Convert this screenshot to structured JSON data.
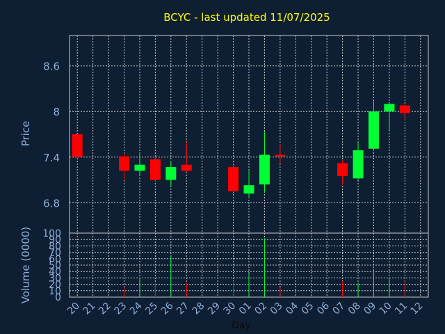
{
  "chart_data": {
    "type": "candlestick",
    "title": "BCYC - last updated 11/07/2025",
    "xlabel": "Day",
    "ylabel": "Price",
    "volume_label": "Volume (0000)",
    "x_ticks": [
      "20",
      "21",
      "22",
      "23",
      "24",
      "25",
      "26",
      "27",
      "28",
      "29",
      "30",
      "01",
      "02",
      "03",
      "04",
      "05",
      "06",
      "07",
      "08",
      "09",
      "10",
      "11",
      "12"
    ],
    "price_ticks": [
      "6.8",
      "7.4",
      "8",
      "8.6"
    ],
    "volume_ticks": [
      "0",
      "10",
      "20",
      "30",
      "40",
      "50",
      "60",
      "70",
      "80",
      "90",
      "100"
    ],
    "ylim": [
      6.4,
      9.0
    ],
    "volume_ylim": [
      0,
      100
    ],
    "grid": true,
    "colors": {
      "background": "#0f1f33",
      "up": "#00ff33",
      "down": "#ff0000",
      "grid": "#c8c8c8",
      "axis_text": "#8fb0d8",
      "title": "#ffff00"
    },
    "candles": [
      {
        "day": "20",
        "open": 7.7,
        "high": 7.7,
        "low": 7.4,
        "close": 7.4,
        "volume": 0
      },
      {
        "day": "23",
        "open": 7.41,
        "high": 7.45,
        "low": 7.1,
        "close": 7.22,
        "volume": 15
      },
      {
        "day": "24",
        "open": 7.22,
        "high": 7.46,
        "low": 7.16,
        "close": 7.3,
        "volume": 30
      },
      {
        "day": "25",
        "open": 7.37,
        "high": 7.4,
        "low": 7.08,
        "close": 7.1,
        "volume": 22
      },
      {
        "day": "26",
        "open": 7.1,
        "high": 7.35,
        "low": 7.02,
        "close": 7.27,
        "volume": 65
      },
      {
        "day": "27",
        "open": 7.3,
        "high": 7.6,
        "low": 7.2,
        "close": 7.22,
        "volume": 22
      },
      {
        "day": "30",
        "open": 7.27,
        "high": 7.3,
        "low": 6.94,
        "close": 6.95,
        "volume": 25
      },
      {
        "day": "01",
        "open": 6.92,
        "high": 7.22,
        "low": 6.86,
        "close": 7.03,
        "volume": 37
      },
      {
        "day": "02",
        "open": 7.04,
        "high": 7.74,
        "low": 6.93,
        "close": 7.43,
        "volume": 92
      },
      {
        "day": "03",
        "open": 7.43,
        "high": 7.57,
        "low": 7.32,
        "close": 7.41,
        "volume": 15
      },
      {
        "day": "07",
        "open": 7.32,
        "high": 7.36,
        "low": 7.04,
        "close": 7.15,
        "volume": 25
      },
      {
        "day": "08",
        "open": 7.12,
        "high": 7.6,
        "low": 7.1,
        "close": 7.49,
        "volume": 22
      },
      {
        "day": "09",
        "open": 7.51,
        "high": 8.14,
        "low": 7.48,
        "close": 8.0,
        "volume": 40
      },
      {
        "day": "10",
        "open": 8.0,
        "high": 8.1,
        "low": 7.74,
        "close": 8.1,
        "volume": 28
      },
      {
        "day": "11",
        "open": 8.08,
        "high": 8.1,
        "low": 7.88,
        "close": 7.98,
        "volume": 25
      }
    ]
  }
}
